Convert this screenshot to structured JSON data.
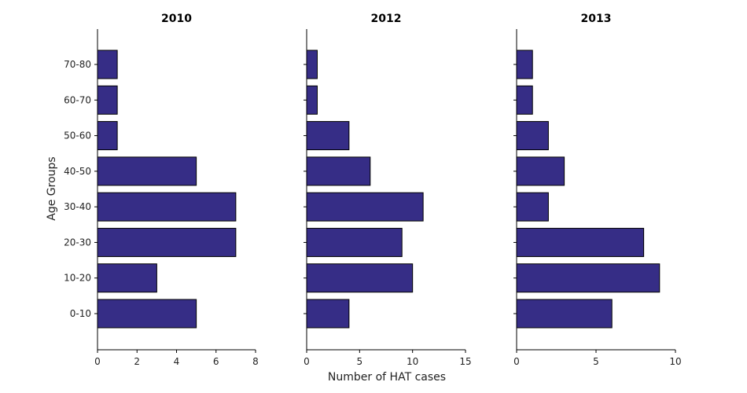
{
  "chart_data": {
    "type": "bar",
    "orientation": "horizontal",
    "ylabel": "Age Groups",
    "xlabel": "Number of HAT cases",
    "categories": [
      "0-10",
      "10-20",
      "20-30",
      "30-40",
      "40-50",
      "50-60",
      "60-70",
      "70-80"
    ],
    "bar_color": "#362d86",
    "grid": false,
    "panels": [
      {
        "title": "2010",
        "values": [
          5,
          3,
          7,
          7,
          5,
          1,
          1,
          1
        ],
        "xlim": [
          0,
          8
        ],
        "xticks": [
          0,
          2,
          4,
          6,
          8
        ]
      },
      {
        "title": "2012",
        "values": [
          4,
          10,
          9,
          11,
          6,
          4,
          1,
          1
        ],
        "xlim": [
          0,
          15
        ],
        "xticks": [
          0,
          5,
          10,
          15
        ]
      },
      {
        "title": "2013",
        "values": [
          6,
          9,
          8,
          2,
          3,
          2,
          1,
          1
        ],
        "xlim": [
          0,
          10
        ],
        "xticks": [
          0,
          5,
          10
        ]
      }
    ]
  }
}
